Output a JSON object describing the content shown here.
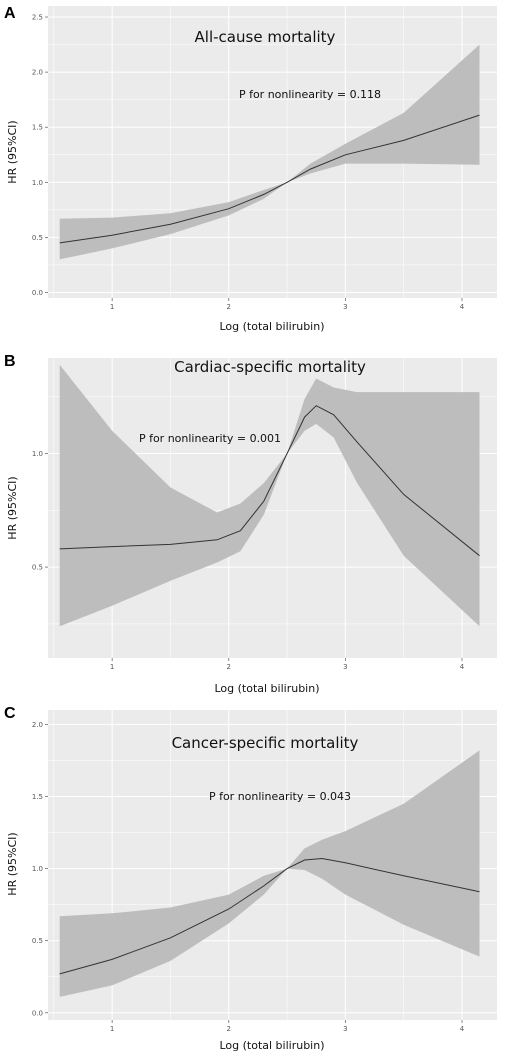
{
  "colors": {
    "panel_background": "#ebebeb",
    "grid_major": "#ffffff",
    "confidence_band": "#bdbdbd",
    "line": "#333333"
  },
  "chart_data": [
    {
      "type": "line",
      "panel_label": "A",
      "title": "All-cause mortality",
      "annotation": "P for nonlinearity = 0.118",
      "xlabel": "Log (total bilirubin)",
      "ylabel": "HR (95%CI)",
      "xlim": [
        0.45,
        4.3
      ],
      "ylim": [
        -0.05,
        2.6
      ],
      "xticks": [
        1,
        2,
        3,
        4
      ],
      "xtick_labels": [
        "1",
        "2",
        "3",
        "4"
      ],
      "yticks": [
        0.0,
        0.5,
        1.0,
        1.5,
        2.0,
        2.5
      ],
      "ytick_labels": [
        "0.0",
        "0.5",
        "1.0",
        "1.5",
        "2.0",
        "2.5"
      ],
      "grid": true,
      "series": [
        {
          "x": [
            0.55,
            1.0,
            1.5,
            2.0,
            2.3,
            2.5,
            2.7,
            3.0,
            3.5,
            4.15
          ],
          "y": [
            0.45,
            0.52,
            0.62,
            0.76,
            0.89,
            1.0,
            1.12,
            1.25,
            1.38,
            1.61
          ],
          "lower": [
            0.3,
            0.4,
            0.53,
            0.7,
            0.85,
            1.0,
            1.08,
            1.17,
            1.17,
            1.16
          ],
          "upper": [
            0.67,
            0.68,
            0.72,
            0.82,
            0.93,
            1.0,
            1.17,
            1.35,
            1.63,
            2.25
          ]
        }
      ]
    },
    {
      "type": "line",
      "panel_label": "B",
      "title": "Cardiac-specific mortality",
      "annotation": "P for nonlinearity = 0.001",
      "xlabel": "Log (total bilirubin)",
      "ylabel": "HR (95%CI)",
      "xlim": [
        0.45,
        4.3
      ],
      "ylim": [
        0.1,
        1.42
      ],
      "xticks": [
        1,
        2,
        3,
        4
      ],
      "xtick_labels": [
        "1",
        "2",
        "3",
        "4"
      ],
      "yticks": [
        0.5,
        1.0
      ],
      "ytick_labels": [
        "0.5",
        "1.0"
      ],
      "grid": true,
      "series": [
        {
          "x": [
            0.55,
            1.0,
            1.5,
            1.9,
            2.1,
            2.3,
            2.5,
            2.65,
            2.75,
            2.9,
            3.1,
            3.5,
            4.15
          ],
          "y": [
            0.58,
            0.59,
            0.6,
            0.62,
            0.66,
            0.79,
            1.0,
            1.16,
            1.21,
            1.17,
            1.05,
            0.82,
            0.55
          ],
          "lower": [
            0.24,
            0.33,
            0.44,
            0.52,
            0.57,
            0.73,
            1.0,
            1.1,
            1.13,
            1.07,
            0.87,
            0.55,
            0.24
          ],
          "upper": [
            1.39,
            1.1,
            0.85,
            0.74,
            0.78,
            0.87,
            1.0,
            1.24,
            1.33,
            1.29,
            1.27,
            1.27,
            1.27
          ]
        }
      ]
    },
    {
      "type": "line",
      "panel_label": "C",
      "title": "Cancer-specific mortality",
      "annotation": "P for nonlinearity = 0.043",
      "xlabel": "Log (total bilirubin)",
      "ylabel": "HR (95%CI)",
      "xlim": [
        0.45,
        4.3
      ],
      "ylim": [
        -0.05,
        2.1
      ],
      "xticks": [
        1,
        2,
        3,
        4
      ],
      "xtick_labels": [
        "1",
        "2",
        "3",
        "4"
      ],
      "yticks": [
        0.0,
        0.5,
        1.0,
        1.5,
        2.0
      ],
      "ytick_labels": [
        "0.0",
        "0.5",
        "1.0",
        "1.5",
        "2.0"
      ],
      "grid": true,
      "series": [
        {
          "x": [
            0.55,
            1.0,
            1.5,
            2.0,
            2.3,
            2.5,
            2.65,
            2.8,
            3.0,
            3.5,
            4.15
          ],
          "y": [
            0.27,
            0.37,
            0.52,
            0.72,
            0.88,
            1.0,
            1.06,
            1.07,
            1.04,
            0.95,
            0.84
          ],
          "lower": [
            0.11,
            0.19,
            0.36,
            0.62,
            0.82,
            1.0,
            0.99,
            0.93,
            0.82,
            0.61,
            0.39
          ],
          "upper": [
            0.67,
            0.69,
            0.73,
            0.82,
            0.95,
            1.0,
            1.14,
            1.2,
            1.26,
            1.45,
            1.82
          ]
        }
      ]
    }
  ]
}
